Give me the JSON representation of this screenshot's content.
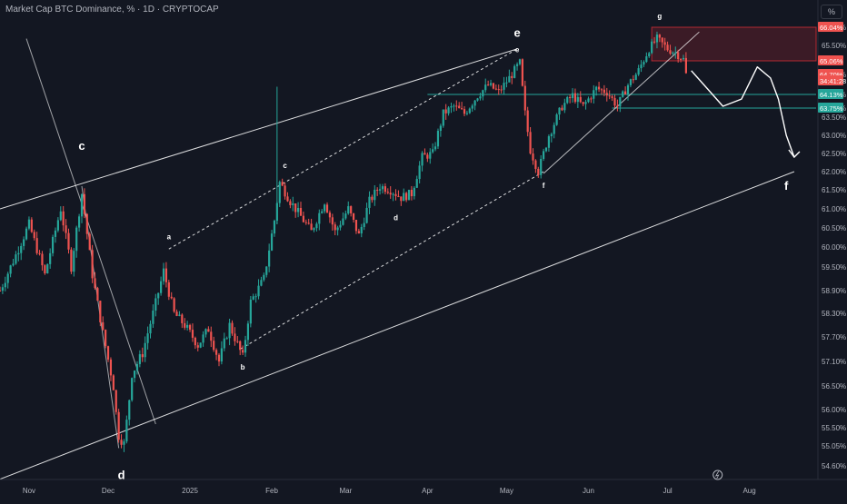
{
  "header": {
    "title": "Market Cap BTC Dominance, % · 1D · CRYPTOCAP",
    "scale_toggle": "%"
  },
  "colors": {
    "background": "#131722",
    "up": "#26a69a",
    "down": "#ef5350",
    "grid": "#1e222d",
    "axis_text": "#b2b5be",
    "drawing": "#ffffff",
    "zone_fill": "rgba(178,40,51,0.25)",
    "green_line": "#26a69a"
  },
  "chart_data": {
    "type": "candlestick",
    "title": "Market Cap BTC Dominance, % · 1D · CRYPTOCAP",
    "y_unit": "%",
    "ylim": [
      54.3,
      66.3
    ],
    "xlim": [
      "2024-10-21",
      "2025-09-07"
    ],
    "y_ticks": [
      "66.04%",
      "65.50%",
      "64.70%",
      "64.13%",
      "63.75%",
      "63.50%",
      "63.00%",
      "62.50%",
      "62.00%",
      "61.50%",
      "61.00%",
      "60.50%",
      "60.00%",
      "59.50%",
      "58.90%",
      "58.30%",
      "57.70%",
      "57.10%",
      "56.50%",
      "56.00%",
      "55.50%",
      "55.05%",
      "54.60%"
    ],
    "x_ticks": [
      {
        "label": "Nov",
        "date": "2024-11-01"
      },
      {
        "label": "Dec",
        "date": "2024-12-01"
      },
      {
        "label": "2025",
        "date": "2025-01-01"
      },
      {
        "label": "Feb",
        "date": "2025-02-01"
      },
      {
        "label": "Mar",
        "date": "2025-03-01"
      },
      {
        "label": "Apr",
        "date": "2025-04-01"
      },
      {
        "label": "May",
        "date": "2025-05-01"
      },
      {
        "label": "Jun",
        "date": "2025-06-01"
      },
      {
        "label": "Jul",
        "date": "2025-07-01"
      },
      {
        "label": "Aug",
        "date": "2025-08-01"
      }
    ],
    "price_labels": [
      {
        "text": "66.04%",
        "value": 66.04,
        "color": "#ef5350"
      },
      {
        "text": "65.06%",
        "value": 65.06,
        "color": "#ef5350"
      },
      {
        "text": "64.70%",
        "value": 64.7,
        "color": "#ef5350"
      },
      {
        "text": "34:41:28",
        "value": 64.52,
        "color": "#ef5350"
      },
      {
        "text": "64.13%",
        "value": 64.13,
        "color": "#26a69a"
      },
      {
        "text": "63.75%",
        "value": 63.75,
        "color": "#26a69a"
      }
    ],
    "waypoints": [
      [
        "2024-10-21",
        58.9
      ],
      [
        "2024-10-27",
        59.8
      ],
      [
        "2024-11-01",
        60.6
      ],
      [
        "2024-11-07",
        59.3
      ],
      [
        "2024-11-13",
        61.0
      ],
      [
        "2024-11-17",
        59.5
      ],
      [
        "2024-11-21",
        61.4
      ],
      [
        "2024-11-25",
        59.3
      ],
      [
        "2024-11-29",
        57.8
      ],
      [
        "2024-12-03",
        56.5
      ],
      [
        "2024-12-05",
        55.3
      ],
      [
        "2024-12-07",
        55.1
      ],
      [
        "2024-12-10",
        56.8
      ],
      [
        "2024-12-14",
        57.3
      ],
      [
        "2024-12-18",
        58.3
      ],
      [
        "2024-12-22",
        59.4
      ],
      [
        "2024-12-26",
        58.3
      ],
      [
        "2024-12-30",
        58.0
      ],
      [
        "2025-01-04",
        57.5
      ],
      [
        "2025-01-08",
        57.9
      ],
      [
        "2025-01-12",
        57.1
      ],
      [
        "2025-01-16",
        58.0
      ],
      [
        "2025-01-21",
        57.2
      ],
      [
        "2025-01-24",
        58.6
      ],
      [
        "2025-01-29",
        59.2
      ],
      [
        "2025-02-02",
        60.7
      ],
      [
        "2025-02-04",
        61.7
      ],
      [
        "2025-02-08",
        61.2
      ],
      [
        "2025-02-12",
        60.8
      ],
      [
        "2025-02-16",
        60.4
      ],
      [
        "2025-02-21",
        61.2
      ],
      [
        "2025-02-25",
        60.4
      ],
      [
        "2025-03-02",
        61.0
      ],
      [
        "2025-03-06",
        60.3
      ],
      [
        "2025-03-10",
        61.2
      ],
      [
        "2025-03-14",
        61.6
      ],
      [
        "2025-03-18",
        61.5
      ],
      [
        "2025-03-22",
        61.3
      ],
      [
        "2025-03-26",
        61.4
      ],
      [
        "2025-03-30",
        62.4
      ],
      [
        "2025-04-03",
        62.5
      ],
      [
        "2025-04-07",
        63.6
      ],
      [
        "2025-04-11",
        63.8
      ],
      [
        "2025-04-15",
        63.6
      ],
      [
        "2025-04-20",
        64.1
      ],
      [
        "2025-04-24",
        64.4
      ],
      [
        "2025-04-28",
        64.2
      ],
      [
        "2025-05-02",
        64.6
      ],
      [
        "2025-05-06",
        65.0
      ],
      [
        "2025-05-08",
        63.6
      ],
      [
        "2025-05-10",
        62.6
      ],
      [
        "2025-05-13",
        62.0
      ],
      [
        "2025-05-17",
        63.0
      ],
      [
        "2025-05-22",
        63.8
      ],
      [
        "2025-05-26",
        64.1
      ],
      [
        "2025-05-30",
        63.8
      ],
      [
        "2025-06-04",
        64.3
      ],
      [
        "2025-06-08",
        64.2
      ],
      [
        "2025-06-12",
        63.8
      ],
      [
        "2025-06-16",
        64.4
      ],
      [
        "2025-06-20",
        64.8
      ],
      [
        "2025-06-24",
        65.4
      ],
      [
        "2025-06-27",
        65.7
      ],
      [
        "2025-07-01",
        65.4
      ],
      [
        "2025-07-04",
        65.3
      ],
      [
        "2025-07-07",
        65.1
      ],
      [
        "2025-07-08",
        64.7
      ]
    ],
    "annotations": [
      {
        "text": "c",
        "date": "2024-11-21",
        "value": 62.6,
        "size": "large"
      },
      {
        "text": "d",
        "date": "2024-12-06",
        "value": 54.3,
        "size": "large"
      },
      {
        "text": "a",
        "date": "2024-12-24",
        "value": 60.2,
        "size": "small"
      },
      {
        "text": "b",
        "date": "2025-01-21",
        "value": 56.9,
        "size": "small"
      },
      {
        "text": "c",
        "date": "2025-02-06",
        "value": 62.1,
        "size": "small"
      },
      {
        "text": "d",
        "date": "2025-03-20",
        "value": 60.7,
        "size": "small"
      },
      {
        "text": "e",
        "date": "2025-05-05",
        "value": 65.3,
        "size": "small"
      },
      {
        "text": "e",
        "date": "2025-05-05",
        "value": 65.75,
        "size": "large"
      },
      {
        "text": "f",
        "date": "2025-05-15",
        "value": 61.55,
        "size": "small"
      },
      {
        "text": "g",
        "date": "2025-06-28",
        "value": 66.3,
        "size": "small"
      },
      {
        "text": "f",
        "date": "2025-08-15",
        "value": 61.5,
        "size": "large"
      }
    ],
    "grid": false,
    "legend": "none"
  }
}
